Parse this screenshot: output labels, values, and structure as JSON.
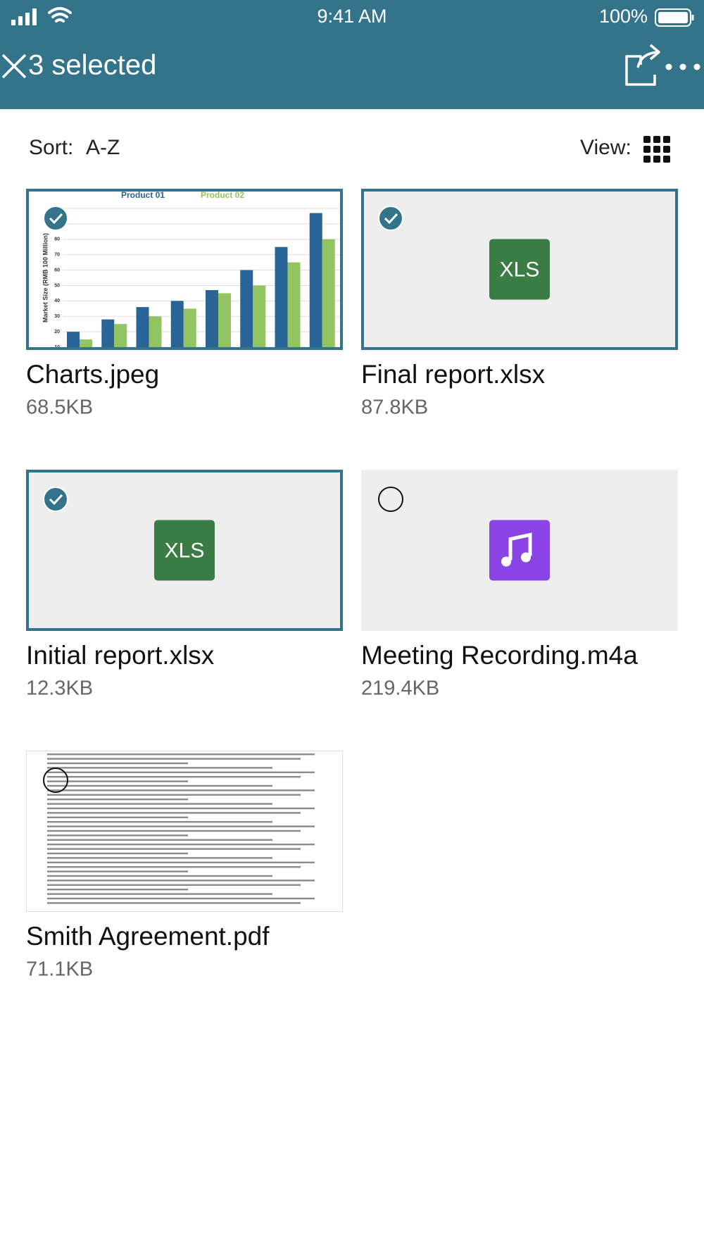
{
  "status": {
    "time": "9:41 AM",
    "battery": "100%"
  },
  "header": {
    "title": "3 selected"
  },
  "toolbar": {
    "sort_label": "Sort:",
    "sort_value": "A-Z",
    "view_label": "View:"
  },
  "files": [
    {
      "name": "Charts.jpeg",
      "size": "68.5KB",
      "selected": true,
      "thumbnail": {
        "type": "bar",
        "ylabel": "Market Size (RMB 100 Million)",
        "ylim": [
          10,
          100
        ],
        "yticks": [
          10,
          20,
          30,
          40,
          50,
          60,
          70,
          80,
          90,
          100
        ],
        "series": [
          {
            "name": "Product 01",
            "color": "#2a6496",
            "values": [
              20,
              28,
              36,
              40,
              47,
              60,
              75,
              97
            ]
          },
          {
            "name": "Product 02",
            "color": "#92c462",
            "values": [
              15,
              25,
              30,
              35,
              45,
              50,
              65,
              80
            ]
          }
        ]
      }
    },
    {
      "name": "Final report.xlsx",
      "size": "87.8KB",
      "selected": true,
      "icon": "XLS"
    },
    {
      "name": "Initial report.xlsx",
      "size": "12.3KB",
      "selected": true,
      "icon": "XLS"
    },
    {
      "name": "Meeting Recording.m4a",
      "size": "219.4KB",
      "selected": false,
      "icon_kind": "audio"
    },
    {
      "name": "Smith Agreement.pdf",
      "size": "71.1KB",
      "selected": false,
      "icon_kind": "document"
    }
  ]
}
